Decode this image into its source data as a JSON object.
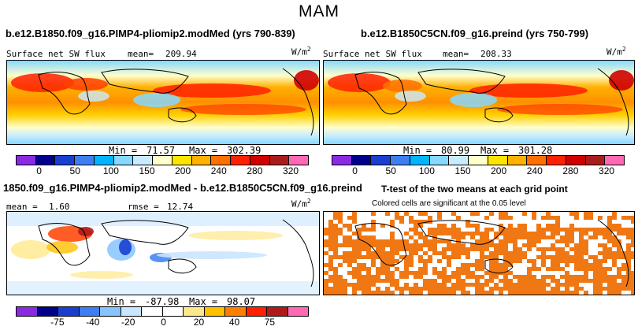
{
  "page_title": "MAM",
  "panels": {
    "case1": {
      "title": "b.e12.B1850.f09_g16.PIMP4-pliomip2.modMed (yrs 790-839)",
      "variable": "Surface net SW flux",
      "mean_label": "mean=",
      "mean_value": "209.94",
      "units_base": "W/m",
      "units_exp": "2",
      "min_label": "Min =",
      "min_value": "71.57",
      "max_label": "Max =",
      "max_value": "302.39"
    },
    "case2": {
      "title": "b.e12.B1850C5CN.f09_g16.preind (yrs 750-799)",
      "variable": "Surface net SW flux",
      "mean_label": "mean=",
      "mean_value": "208.33",
      "units_base": "W/m",
      "units_exp": "2",
      "min_label": "Min =",
      "min_value": "80.99",
      "max_label": "Max =",
      "max_value": "301.28"
    },
    "diff": {
      "title": "1850.f09_g16.PIMP4-pliomip2.modMed - b.e12.B1850C5CN.f09_g16.preind",
      "mean_label": "mean =",
      "mean_value": "1.60",
      "rmse_label": "rmse =",
      "rmse_value": "12.74",
      "units_base": "W/m",
      "units_exp": "2",
      "min_label": "Min =",
      "min_value": "-87.98",
      "max_label": "Max =",
      "max_value": "98.07"
    },
    "ttest": {
      "title": "T-test of the two means at each grid point",
      "subtitle": "Colored cells are significant at the 0.05 level",
      "sig_color": "#f07814"
    }
  },
  "chart_data": [
    {
      "type": "heatmap",
      "title": "b.e12.B1850.f09_g16.PIMP4-pliomip2.modMed (yrs 790-839)",
      "variable": "Surface net SW flux",
      "units": "W/m2",
      "mean": 209.94,
      "min": 71.57,
      "max": 302.39,
      "colorbar_ticks": [
        "0",
        "50",
        "100",
        "150",
        "200",
        "240",
        "280",
        "320"
      ],
      "colorbar_colors": [
        "#8a2be2",
        "#00008b",
        "#1a3fd0",
        "#3d7ff2",
        "#00b4ff",
        "#87d8ff",
        "#c8ecff",
        "#ffffcc",
        "#ffe400",
        "#ffb000",
        "#ff7000",
        "#ff2000",
        "#d00000",
        "#a81e1e",
        "#ff69b4"
      ]
    },
    {
      "type": "heatmap",
      "title": "b.e12.B1850C5CN.f09_g16.preind (yrs 750-799)",
      "variable": "Surface net SW flux",
      "units": "W/m2",
      "mean": 208.33,
      "min": 80.99,
      "max": 301.28,
      "colorbar_ticks": [
        "0",
        "50",
        "100",
        "150",
        "200",
        "240",
        "280",
        "320"
      ],
      "colorbar_colors": [
        "#8a2be2",
        "#00008b",
        "#1a3fd0",
        "#3d7ff2",
        "#00b4ff",
        "#87d8ff",
        "#c8ecff",
        "#ffffcc",
        "#ffe400",
        "#ffb000",
        "#ff7000",
        "#ff2000",
        "#d00000",
        "#a81e1e",
        "#ff69b4"
      ]
    },
    {
      "type": "heatmap",
      "title": "1850.f09_g16.PIMP4-pliomip2.modMed - b.e12.B1850C5CN.f09_g16.preind",
      "units": "W/m2",
      "mean": 1.6,
      "rmse": 12.74,
      "min": -87.98,
      "max": 98.07,
      "colorbar_ticks": [
        "-75",
        "-40",
        "-20",
        "0",
        "20",
        "40",
        "75"
      ],
      "colorbar_colors": [
        "#8a2be2",
        "#00008b",
        "#1a3fd0",
        "#3d7ff2",
        "#87c4ff",
        "#c8e6ff",
        "#ffffff",
        "#ffffff",
        "#ffe88a",
        "#ffc000",
        "#ff8000",
        "#ff2000",
        "#b01a1a",
        "#ff69b4"
      ]
    },
    {
      "type": "heatmap",
      "title": "T-test of the two means at each grid point",
      "subtitle": "Colored cells are significant at the 0.05 level",
      "colors": [
        "#f07814",
        "#ffffff"
      ]
    }
  ]
}
